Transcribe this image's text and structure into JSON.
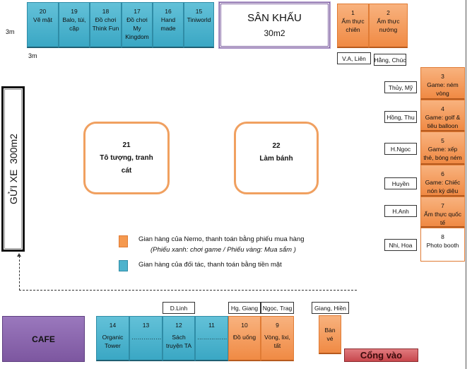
{
  "dimension_labels": [
    "3m",
    "3m"
  ],
  "top_row": [
    {
      "num": "20",
      "name": "Vẽ mặt"
    },
    {
      "num": "19",
      "name": "Balo, túi, cặp"
    },
    {
      "num": "18",
      "name": "Đồ chơi Think Fun"
    },
    {
      "num": "17",
      "name": "Đồ chơi My Kingdom"
    },
    {
      "num": "16",
      "name": "Hand made"
    },
    {
      "num": "15",
      "name": "Tiniworld"
    }
  ],
  "stage": {
    "title": "SÂN KHẤU",
    "area": "30m2"
  },
  "top_right": [
    {
      "num": "1",
      "name": "Ẩm thực chiên",
      "staff": "V.A, Liên"
    },
    {
      "num": "2",
      "name": "Ẩm thực nướng",
      "staff": "Hằng, Chúc"
    }
  ],
  "right_column": [
    {
      "num": "3",
      "name": "Game: ném vòng",
      "staff": "Thủy, Mỹ"
    },
    {
      "num": "4",
      "name": "Game: golf & tiêu balloon",
      "staff": "Hồng, Thu"
    },
    {
      "num": "5",
      "name": "Game: xếp thẻ, bóng ném",
      "staff": "H.Ngoc"
    },
    {
      "num": "6",
      "name": "Game: Chiếc nón kỳ diệu",
      "staff": "Huyền"
    },
    {
      "num": "7",
      "name": "Ẩm thực quốc tế",
      "staff": "H.Anh"
    },
    {
      "num": "8",
      "name": "Photo booth",
      "staff": "Nhi, Hoa"
    }
  ],
  "parking": "GỬI XE  300m2",
  "center": [
    {
      "num": "21",
      "name": "Tô tượng, tranh cát"
    },
    {
      "num": "22",
      "name": "Làm bánh"
    }
  ],
  "legend": {
    "orange": "Gian hàng của Nemo, thanh toán bằng phiếu mua hàng",
    "orange_note": "(Phiếu xanh: chơi game / Phiếu vàng: Mua sắm )",
    "blue": "Gian hàng của đối tác, thanh toán bằng tiền mặt"
  },
  "cafe": "CAFE",
  "bottom_row": [
    {
      "num": "14",
      "name": "Organic Tower",
      "staff": ""
    },
    {
      "num": "13",
      "name": "……………",
      "staff": ""
    },
    {
      "num": "12",
      "name": "Sách truyện TA",
      "staff": "D.Linh"
    },
    {
      "num": "11",
      "name": "……………",
      "staff": ""
    },
    {
      "num": "10",
      "name": "Đồ uống",
      "staff": "Hg, Giang"
    },
    {
      "num": "9",
      "name": "Vòng, lixi, tất",
      "staff": "Ngọc, Trag"
    }
  ],
  "ticket": {
    "name": "Bàn vé",
    "staff": "Giang, Hiền"
  },
  "gate": "Cổng vào",
  "colors": {
    "nemo": "#f5994f",
    "partner": "#4db3cd",
    "stage": "#7a5a9e",
    "cafe": "#7d57a0",
    "gate": "#c8474d"
  }
}
